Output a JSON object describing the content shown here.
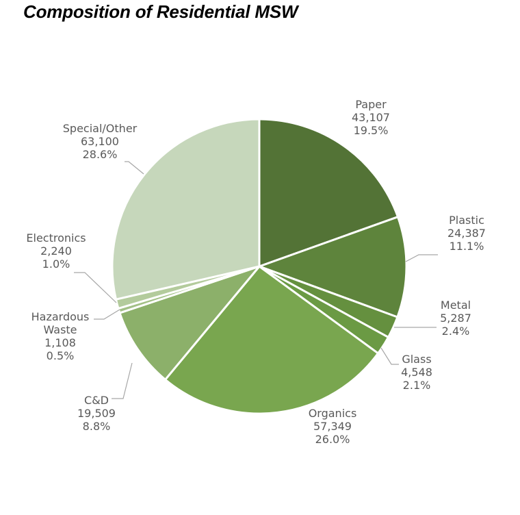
{
  "chart_data": {
    "type": "pie",
    "title": "Composition of Residential MSW",
    "slices": [
      {
        "label": "Paper",
        "value_text": "43,107",
        "pct_text": "19.5%",
        "value": 43107,
        "color": "#537336"
      },
      {
        "label": "Plastic",
        "value_text": "24,387",
        "pct_text": "11.1%",
        "value": 24387,
        "color": "#5e843c"
      },
      {
        "label": "Metal",
        "value_text": "5,287",
        "pct_text": "2.4%",
        "value": 5287,
        "color": "#65903f"
      },
      {
        "label": "Glass",
        "value_text": "4,548",
        "pct_text": "2.1%",
        "value": 4548,
        "color": "#6b9a44"
      },
      {
        "label": "Organics",
        "value_text": "57,349",
        "pct_text": "26.0%",
        "value": 57349,
        "color": "#79a64f"
      },
      {
        "label": "C&D",
        "value_text": "19,509",
        "pct_text": "8.8%",
        "value": 19509,
        "color": "#8cb06a"
      },
      {
        "label": "Hazardous Waste",
        "value_text": "1,108",
        "pct_text": "0.5%",
        "value": 1108,
        "color": "#a2c086"
      },
      {
        "label": "Electronics",
        "value_text": "2,240",
        "pct_text": "1.0%",
        "value": 2240,
        "color": "#b3cb9c"
      },
      {
        "label": "Special/Other",
        "value_text": "63,100",
        "pct_text": "28.6%",
        "value": 63100,
        "color": "#c6d7bb"
      }
    ]
  }
}
